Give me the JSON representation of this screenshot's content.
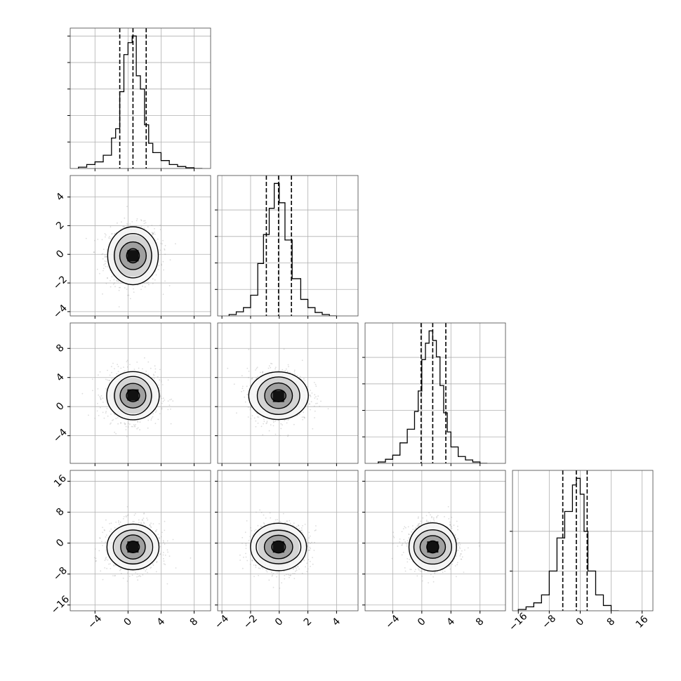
{
  "chart_data": {
    "type": "corner",
    "grid": true,
    "quantiles": [
      0.16,
      0.5,
      0.84
    ],
    "params": [
      {
        "range": [
          -7,
          10
        ],
        "ticks": [
          -4,
          0,
          4,
          8
        ],
        "tick_labels": [
          "−4",
          "0",
          "4",
          "8"
        ],
        "hist_quantile_lines": [
          -1.0,
          0.6,
          2.2
        ],
        "hist": {
          "edges": [
            -6,
            -5,
            -4,
            -3,
            -2,
            -1.5,
            -1,
            -0.5,
            0,
            0.5,
            1,
            1.5,
            2,
            2.5,
            3,
            4,
            5,
            6,
            7,
            8,
            9
          ],
          "heights": [
            0.01,
            0.03,
            0.05,
            0.1,
            0.23,
            0.3,
            0.58,
            0.86,
            0.95,
            1.0,
            0.7,
            0.6,
            0.33,
            0.19,
            0.12,
            0.06,
            0.03,
            0.015,
            0.006,
            0.0
          ]
        },
        "hist_ticks": [
          0.2,
          0.4,
          0.6,
          0.8,
          1.0
        ]
      },
      {
        "range": [
          -4.3,
          5.5
        ],
        "ticks": [
          -4,
          -2,
          0,
          2,
          4
        ],
        "tick_labels": [
          "−4",
          "−2",
          "0",
          "2",
          "4"
        ],
        "hist_quantile_lines": [
          -0.9,
          -0.05,
          0.85
        ],
        "hist": {
          "edges": [
            -3.5,
            -3,
            -2.5,
            -2,
            -1.5,
            -1.1,
            -0.7,
            -0.35,
            0,
            0.4,
            0.9,
            1.5,
            2,
            2.5,
            3,
            3.5,
            4
          ],
          "heights": [
            0.01,
            0.03,
            0.06,
            0.15,
            0.38,
            0.59,
            0.78,
            0.96,
            0.82,
            0.55,
            0.27,
            0.12,
            0.06,
            0.025,
            0.01,
            0.0
          ]
        },
        "hist_ticks": [
          0.2,
          0.4,
          0.6,
          0.8
        ]
      },
      {
        "range": [
          -7.8,
          11.5
        ],
        "ticks": [
          -4,
          0,
          4,
          8
        ],
        "tick_labels": [
          "−4",
          "0",
          "4",
          "8"
        ],
        "hist_quantile_lines": [
          -0.1,
          1.5,
          3.3
        ],
        "hist": {
          "edges": [
            -6,
            -5,
            -4,
            -3,
            -2,
            -1,
            -0.5,
            0,
            0.5,
            1,
            1.5,
            2,
            2.5,
            3,
            3.5,
            4,
            5,
            6,
            7,
            8,
            9
          ],
          "heights": [
            0.01,
            0.03,
            0.06,
            0.15,
            0.25,
            0.38,
            0.53,
            0.76,
            0.88,
            0.97,
            0.9,
            0.78,
            0.57,
            0.37,
            0.23,
            0.12,
            0.05,
            0.025,
            0.01,
            0.0
          ]
        },
        "hist_ticks": [
          0.2,
          0.4,
          0.6,
          0.8
        ]
      },
      {
        "range": [
          -17.5,
          18.8
        ],
        "ticks": [
          -16,
          -8,
          0,
          8,
          16
        ],
        "tick_labels": [
          "−16",
          "−8",
          "0",
          "8",
          "16"
        ],
        "hist_quantile_lines": [
          -4.5,
          -1.0,
          1.8
        ],
        "hist": {
          "edges": [
            -16,
            -14,
            -12,
            -10,
            -8,
            -6,
            -4,
            -2,
            -1,
            0,
            1,
            2,
            4,
            6,
            8,
            10
          ],
          "heights": [
            0.01,
            0.03,
            0.06,
            0.12,
            0.3,
            0.55,
            0.75,
            0.95,
            1.0,
            0.88,
            0.6,
            0.3,
            0.12,
            0.04,
            0.0
          ]
        },
        "hist_ticks": [
          0.3,
          0.6
        ]
      }
    ],
    "pairs": [
      {
        "x": 0,
        "y": 1,
        "center": [
          0.6,
          -0.1
        ],
        "peak": [
          0.6,
          -0.1
        ],
        "sx": 1.55,
        "sy": 1.0,
        "rho": 0.0
      },
      {
        "x": 0,
        "y": 2,
        "center": [
          0.6,
          1.5
        ],
        "peak": [
          0.6,
          1.6
        ],
        "sx": 1.55,
        "sy": 1.7,
        "rho": 0.0
      },
      {
        "x": 1,
        "y": 2,
        "center": [
          -0.05,
          1.5
        ],
        "peak": [
          -0.05,
          1.4
        ],
        "sx": 1.0,
        "sy": 1.7,
        "rho": 0.0
      },
      {
        "x": 0,
        "y": 3,
        "center": [
          0.6,
          -1.0
        ],
        "peak": [
          0.6,
          -1.0
        ],
        "sx": 1.55,
        "sy": 3.0,
        "rho": 0.0
      },
      {
        "x": 1,
        "y": 3,
        "center": [
          -0.05,
          -1.0
        ],
        "peak": [
          -0.05,
          -1.0
        ],
        "sx": 1.0,
        "sy": 3.0,
        "rho": 0.0
      },
      {
        "x": 2,
        "y": 3,
        "center": [
          1.5,
          -1.0
        ],
        "peak": [
          1.5,
          -1.0
        ],
        "sx": 1.7,
        "sy": 3.0,
        "rho": 0.0
      }
    ],
    "contour_levels_sigma": [
      0.5,
      1.0,
      1.5,
      2.0
    ]
  }
}
